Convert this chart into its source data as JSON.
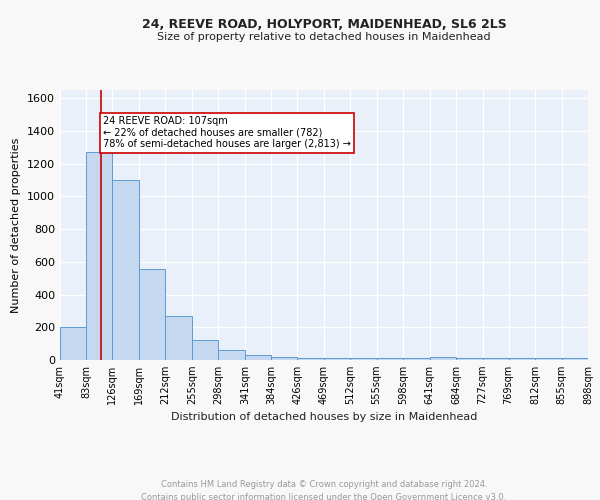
{
  "title1": "24, REEVE ROAD, HOLYPORT, MAIDENHEAD, SL6 2LS",
  "title2": "Size of property relative to detached houses in Maidenhead",
  "xlabel": "Distribution of detached houses by size in Maidenhead",
  "ylabel": "Number of detached properties",
  "bar_edges": [
    41,
    83,
    126,
    169,
    212,
    255,
    298,
    341,
    384,
    426,
    469,
    512,
    555,
    598,
    641,
    684,
    727,
    769,
    812,
    855,
    898
  ],
  "bar_heights": [
    200,
    1270,
    1100,
    555,
    270,
    125,
    60,
    30,
    20,
    10,
    10,
    10,
    10,
    10,
    20,
    10,
    10,
    10,
    10,
    10
  ],
  "bar_color": "#c5d8f0",
  "bar_edge_color": "#5b9bd5",
  "bg_color": "#eaf0f9",
  "grid_color": "#ffffff",
  "vline_x": 107,
  "vline_color": "#cc0000",
  "annotation_text": "24 REEVE ROAD: 107sqm\n← 22% of detached houses are smaller (782)\n78% of semi-detached houses are larger (2,813) →",
  "annotation_box_color": "#ffffff",
  "annotation_box_edge": "#cc0000",
  "ylim": [
    0,
    1650
  ],
  "yticks": [
    0,
    200,
    400,
    600,
    800,
    1000,
    1200,
    1400,
    1600
  ],
  "tick_labels": [
    "41sqm",
    "83sqm",
    "126sqm",
    "169sqm",
    "212sqm",
    "255sqm",
    "298sqm",
    "341sqm",
    "384sqm",
    "426sqm",
    "469sqm",
    "512sqm",
    "555sqm",
    "598sqm",
    "641sqm",
    "684sqm",
    "727sqm",
    "769sqm",
    "812sqm",
    "855sqm",
    "898sqm"
  ],
  "footer": "Contains HM Land Registry data © Crown copyright and database right 2024.\nContains public sector information licensed under the Open Government Licence v3.0.",
  "footer_color": "#999999",
  "fig_bg": "#f8f8f8"
}
